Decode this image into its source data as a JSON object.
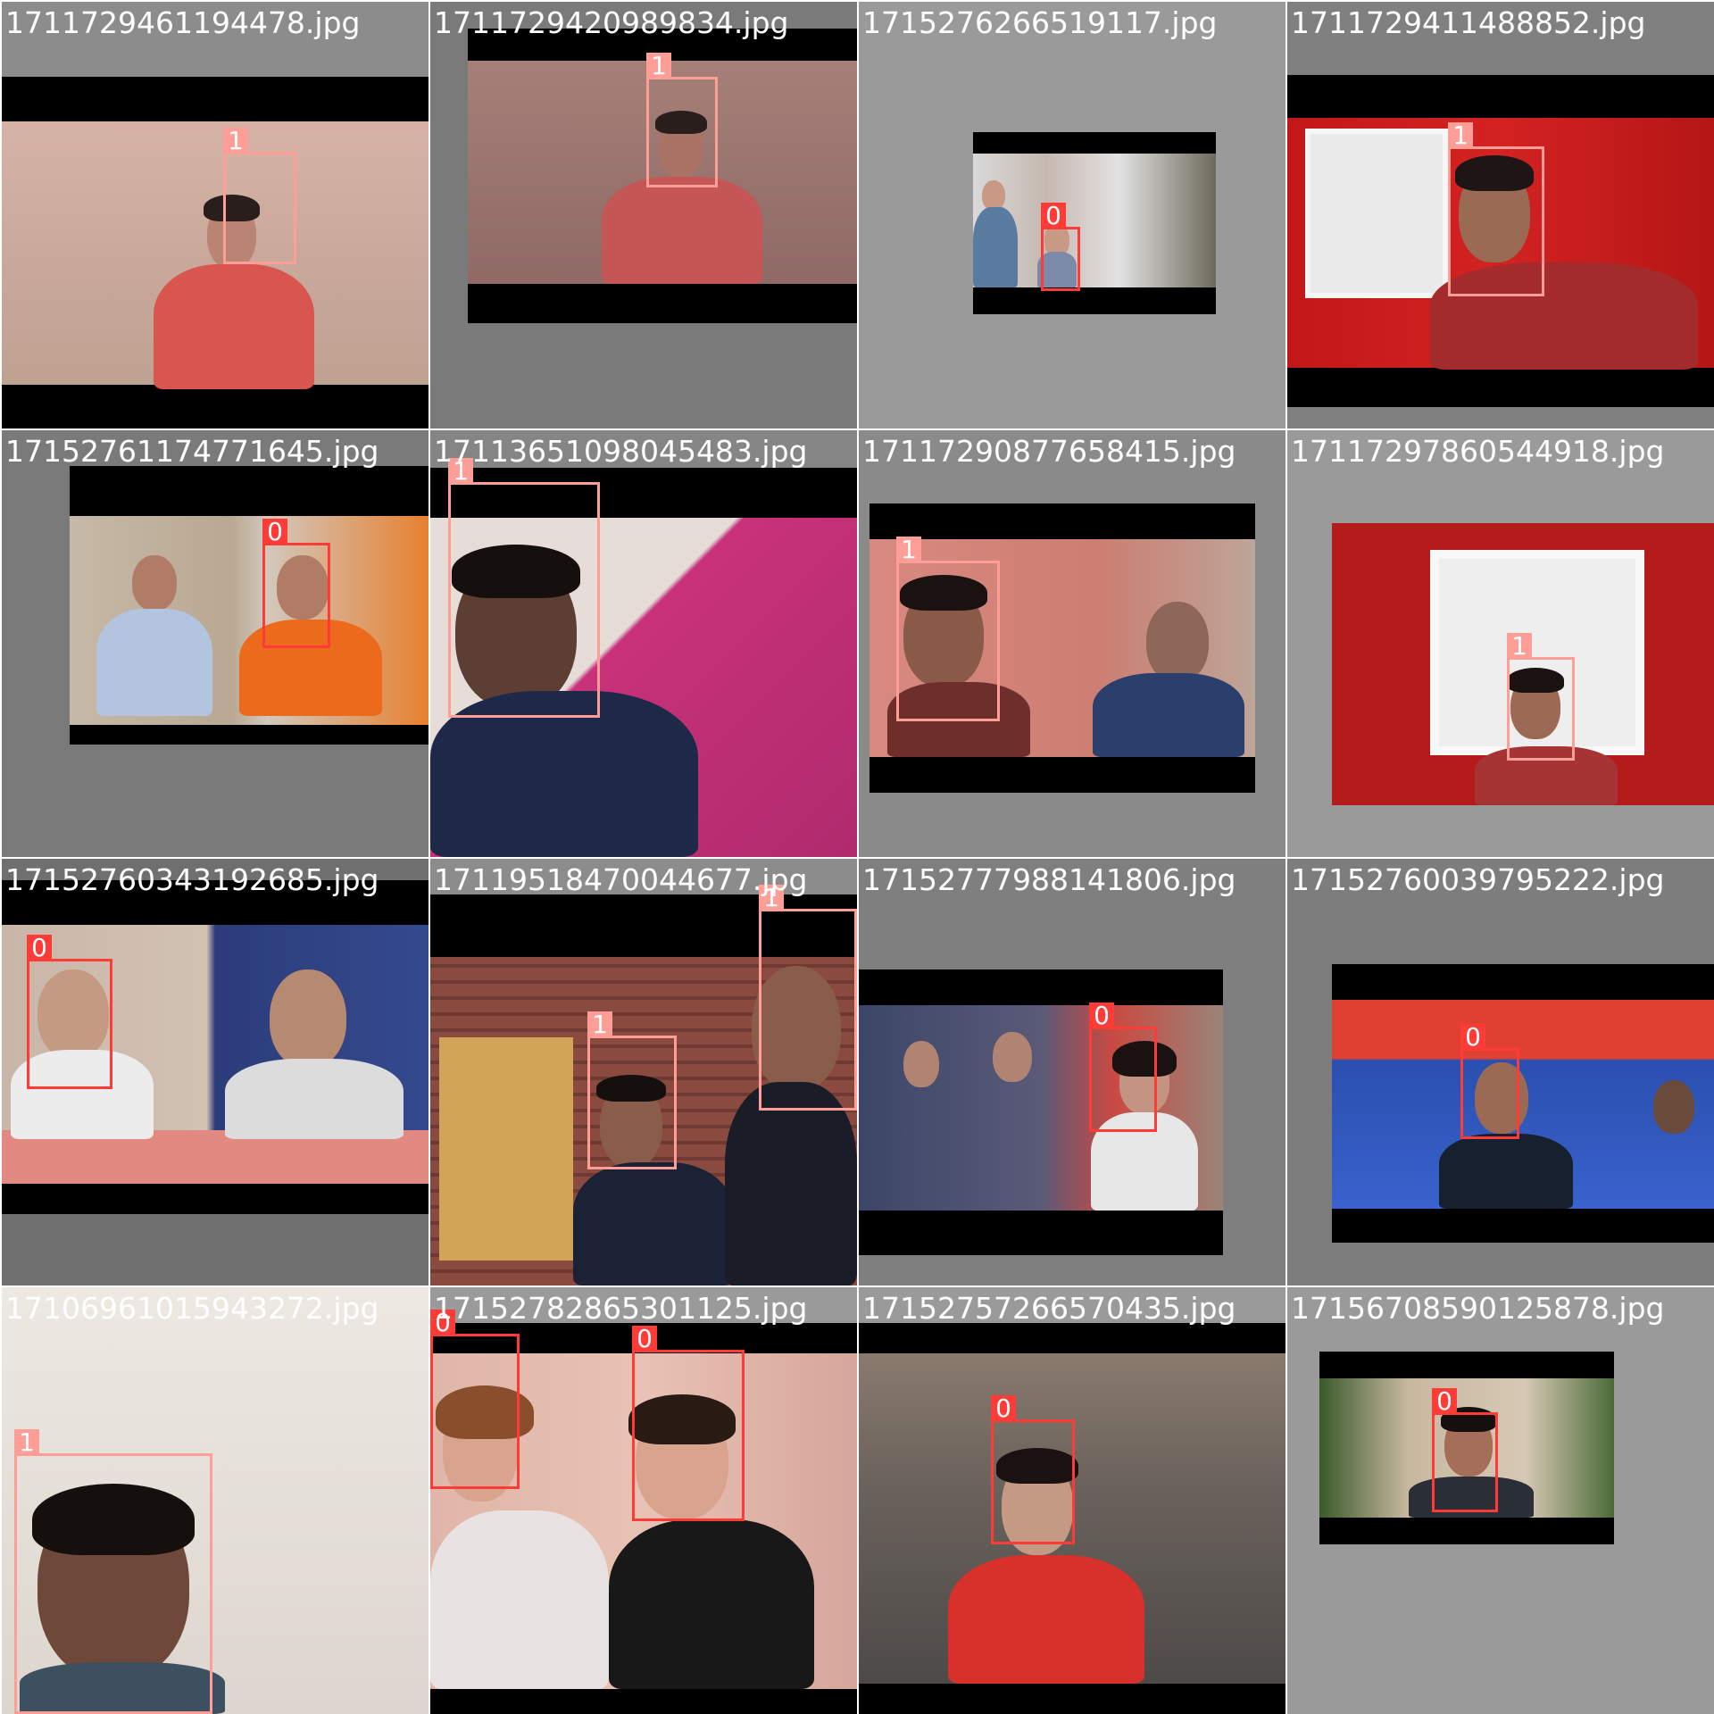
{
  "colors": {
    "class_0": "#ff3b38",
    "class_1": "#ff9d97",
    "tile_gray": "#808080",
    "tile_light": "#a6a6a6",
    "letterbox": "#000000"
  },
  "tiles": [
    {
      "filename": "1711729461194478.jpg",
      "bg": "#8c8c8c",
      "boxes": [
        {
          "label": "1",
          "cls": 1
        }
      ]
    },
    {
      "filename": "1711729420989834.jpg",
      "bg": "#7a7a7a",
      "boxes": [
        {
          "label": "1",
          "cls": 1
        }
      ]
    },
    {
      "filename": "1715276266519117.jpg",
      "bg": "#9a9a9a",
      "boxes": [
        {
          "label": "0",
          "cls": 0
        }
      ]
    },
    {
      "filename": "1711729411488852.jpg",
      "bg": "#808080",
      "boxes": [
        {
          "label": "1",
          "cls": 1
        }
      ]
    },
    {
      "filename": "17152761174771645.jpg",
      "bg": "#7a7a7a",
      "boxes": [
        {
          "label": "0",
          "cls": 0
        }
      ]
    },
    {
      "filename": "17113651098045483.jpg",
      "bg": "#858585",
      "boxes": [
        {
          "label": "1",
          "cls": 1
        }
      ]
    },
    {
      "filename": "17117290877658415.jpg",
      "bg": "#8a8a8a",
      "boxes": [
        {
          "label": "1",
          "cls": 1
        }
      ]
    },
    {
      "filename": "17117297860544918.jpg",
      "bg": "#9a9a9a",
      "boxes": [
        {
          "label": "1",
          "cls": 1
        }
      ]
    },
    {
      "filename": "17152760343192685.jpg",
      "bg": "#6f6f6f",
      "boxes": [
        {
          "label": "0",
          "cls": 0
        }
      ]
    },
    {
      "filename": "17119518470044677.jpg",
      "bg": "#8c8c8c",
      "boxes": [
        {
          "label": "1",
          "cls": 1
        },
        {
          "label": "1",
          "cls": 1
        }
      ]
    },
    {
      "filename": "17152777988141806.jpg",
      "bg": "#7f7f7f",
      "boxes": [
        {
          "label": "0",
          "cls": 0
        }
      ]
    },
    {
      "filename": "17152760039795222.jpg",
      "bg": "#7d7d7d",
      "boxes": [
        {
          "label": "0",
          "cls": 0
        }
      ]
    },
    {
      "filename": "17106961015943272.jpg",
      "bg": "#e4e0dc",
      "boxes": [
        {
          "label": "1",
          "cls": 1
        }
      ]
    },
    {
      "filename": "17152782865301125.jpg",
      "bg": "#9a9a9a",
      "boxes": [
        {
          "label": "0",
          "cls": 0
        },
        {
          "label": "0",
          "cls": 0
        }
      ]
    },
    {
      "filename": "17152757266570435.jpg",
      "bg": "#9a9a9a",
      "boxes": [
        {
          "label": "0",
          "cls": 0
        }
      ]
    },
    {
      "filename": "17156708590125878.jpg",
      "bg": "#9a9a9a",
      "boxes": [
        {
          "label": "0",
          "cls": 0
        }
      ]
    }
  ]
}
